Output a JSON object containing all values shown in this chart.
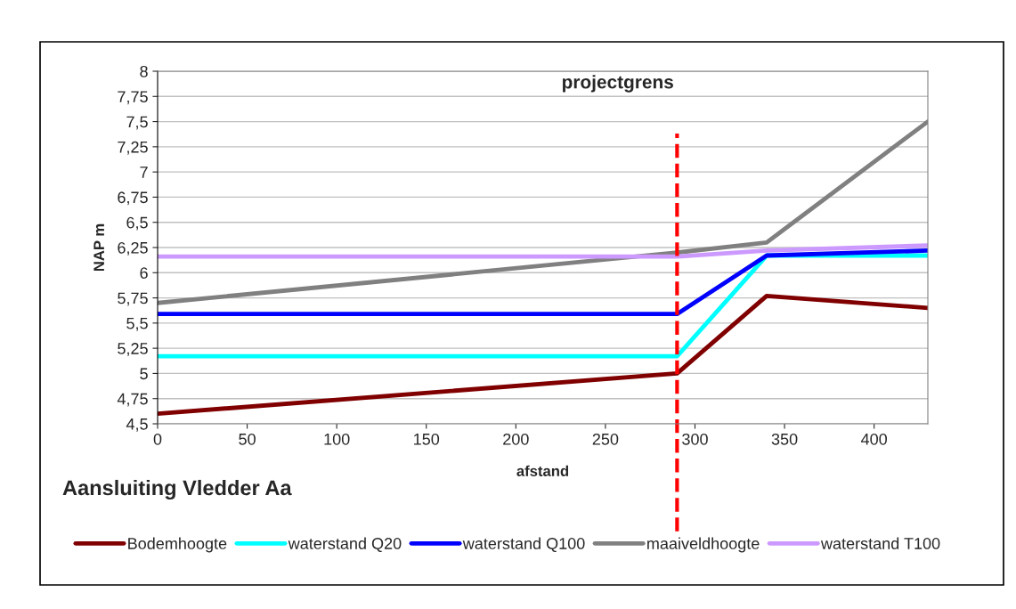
{
  "chart_data": {
    "type": "line",
    "title": "Aansluiting Vledder Aa",
    "xlabel": "afstand",
    "ylabel": "NAP m",
    "x": [
      0,
      290,
      340,
      430
    ],
    "series": [
      {
        "name": "Bodemhoogte",
        "color": "#800000",
        "values": [
          4.6,
          5.0,
          5.77,
          5.65
        ]
      },
      {
        "name": "waterstand Q20",
        "color": "#00ffff",
        "values": [
          5.17,
          5.17,
          6.17,
          6.17
        ]
      },
      {
        "name": "waterstand Q100",
        "color": "#0000ff",
        "values": [
          5.59,
          5.59,
          6.17,
          6.22
        ]
      },
      {
        "name": "maaiveldhoogte",
        "color": "#808080",
        "values": [
          5.7,
          6.2,
          6.3,
          7.5
        ]
      },
      {
        "name": "waterstand T100",
        "color": "#cc99ff",
        "values": [
          6.16,
          6.16,
          6.22,
          6.27
        ]
      }
    ],
    "xlim": [
      0,
      430
    ],
    "xticks": [
      0,
      50,
      100,
      150,
      200,
      250,
      300,
      350,
      400
    ],
    "ylim": [
      4.5,
      8
    ],
    "yticks": [
      {
        "value": 4.5,
        "label": "4,5"
      },
      {
        "value": 4.75,
        "label": "4,75"
      },
      5,
      {
        "value": 5.25,
        "label": "5,25"
      },
      {
        "value": 5.5,
        "label": "5,5"
      },
      {
        "value": 5.75,
        "label": "5,75"
      },
      6,
      {
        "value": 6.25,
        "label": "6,25"
      },
      {
        "value": 6.5,
        "label": "6,5"
      },
      {
        "value": 6.75,
        "label": "6,75"
      },
      7,
      {
        "value": 7.25,
        "label": "7,25"
      },
      {
        "value": 7.5,
        "label": "7,5"
      },
      {
        "value": 7.75,
        "label": "7,75"
      },
      8
    ],
    "ref_lines": [
      {
        "axis": "x",
        "value": 290,
        "label": "projectgrens",
        "color": "#ff0000",
        "line_style": "dashed"
      }
    ],
    "grid": "y",
    "legend": "bottom",
    "marker": "none",
    "line_style": "solid"
  }
}
